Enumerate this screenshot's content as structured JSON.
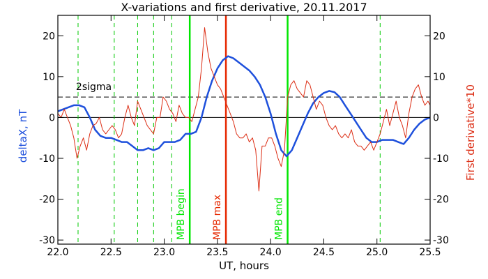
{
  "chart_data": {
    "type": "line",
    "title": "X-variations and first derivative, 20.11.2017",
    "xlabel": "UT, hours",
    "ylabel_left": "deltaX, nT",
    "ylabel_right": "First derivative*10",
    "xlim": [
      22.0,
      25.5
    ],
    "ylim": [
      -31,
      25
    ],
    "xticks": [
      "22.0",
      "22.5",
      "23.0",
      "23.5",
      "24.0",
      "24.5",
      "25.0",
      "25.5"
    ],
    "xtick_values": [
      22.0,
      22.5,
      23.0,
      23.5,
      24.0,
      24.5,
      25.0,
      25.5
    ],
    "yticks_left": [
      "20",
      "10",
      "0",
      "-10",
      "-20",
      "-30"
    ],
    "yticks_right": [
      "20",
      "10",
      "0",
      "-10",
      "-20",
      "-30"
    ],
    "ytick_values": [
      20,
      10,
      0,
      -10,
      -20,
      -30
    ],
    "colors": {
      "deltaX": "#1e50dc",
      "derivative": "#dc2d14",
      "mpb": "#00e600",
      "max": "#e62800",
      "dashed_green": "#00c800",
      "axis_left_label": "#1e50dc",
      "axis_right_label": "#dc2d14"
    },
    "series": [
      {
        "key": "deltaX",
        "color": "#1e50dc",
        "x": [
          22.0,
          22.05,
          22.1,
          22.15,
          22.2,
          22.25,
          22.3,
          22.35,
          22.4,
          22.45,
          22.5,
          22.55,
          22.6,
          22.65,
          22.7,
          22.75,
          22.8,
          22.85,
          22.9,
          22.95,
          23.0,
          23.05,
          23.1,
          23.15,
          23.2,
          23.25,
          23.3,
          23.35,
          23.4,
          23.45,
          23.5,
          23.55,
          23.6,
          23.65,
          23.7,
          23.75,
          23.8,
          23.85,
          23.9,
          23.95,
          24.0,
          24.05,
          24.1,
          24.15,
          24.2,
          24.25,
          24.3,
          24.35,
          24.4,
          24.45,
          24.5,
          24.55,
          24.6,
          24.65,
          24.7,
          24.75,
          24.8,
          24.85,
          24.9,
          24.95,
          25.0,
          25.05,
          25.1,
          25.15,
          25.2,
          25.25,
          25.3,
          25.35,
          25.4,
          25.45,
          25.5
        ],
        "values": [
          1.5,
          2,
          2.5,
          3,
          3,
          2.5,
          0,
          -3,
          -4.5,
          -5,
          -5,
          -5.5,
          -6,
          -6,
          -7,
          -8,
          -8,
          -7.5,
          -8,
          -7.5,
          -6,
          -6,
          -6,
          -5.5,
          -4,
          -4,
          -3.5,
          0,
          5,
          9,
          12,
          14,
          15,
          14.5,
          13.5,
          12.5,
          11.5,
          10,
          8,
          5,
          1,
          -4,
          -8,
          -9.5,
          -8,
          -5,
          -2,
          1,
          3.5,
          5,
          6,
          6.5,
          6.2,
          5,
          3,
          1,
          -1,
          -3,
          -5,
          -6,
          -6,
          -5.5,
          -5.5,
          -5.5,
          -6,
          -6.5,
          -5,
          -3,
          -1.5,
          -0.5,
          0
        ]
      },
      {
        "key": "derivative",
        "color": "#dc2d14",
        "x": [
          22.0,
          22.03,
          22.06,
          22.09,
          22.12,
          22.15,
          22.18,
          22.21,
          22.24,
          22.27,
          22.3,
          22.33,
          22.36,
          22.39,
          22.42,
          22.45,
          22.48,
          22.51,
          22.54,
          22.57,
          22.6,
          22.63,
          22.66,
          22.69,
          22.72,
          22.75,
          22.78,
          22.81,
          22.84,
          22.87,
          22.9,
          22.93,
          22.96,
          22.99,
          23.02,
          23.05,
          23.08,
          23.11,
          23.14,
          23.17,
          23.2,
          23.23,
          23.26,
          23.29,
          23.32,
          23.35,
          23.38,
          23.41,
          23.44,
          23.47,
          23.5,
          23.53,
          23.56,
          23.59,
          23.62,
          23.65,
          23.68,
          23.71,
          23.74,
          23.77,
          23.8,
          23.83,
          23.86,
          23.89,
          23.92,
          23.95,
          23.98,
          24.01,
          24.04,
          24.07,
          24.1,
          24.13,
          24.16,
          24.19,
          24.22,
          24.25,
          24.28,
          24.31,
          24.34,
          24.37,
          24.4,
          24.43,
          24.46,
          24.49,
          24.52,
          24.55,
          24.58,
          24.61,
          24.64,
          24.67,
          24.7,
          24.73,
          24.76,
          24.79,
          24.82,
          24.85,
          24.88,
          24.91,
          24.94,
          24.97,
          25.0,
          25.03,
          25.06,
          25.09,
          25.12,
          25.15,
          25.18,
          25.21,
          25.24,
          25.27,
          25.3,
          25.33,
          25.36,
          25.39,
          25.42,
          25.45,
          25.48,
          25.5
        ],
        "values": [
          1,
          0,
          2,
          0,
          -2,
          -5,
          -10,
          -7,
          -5,
          -8,
          -4,
          -2,
          -1.5,
          0,
          -3,
          -4,
          -3,
          -2,
          -3,
          -5,
          -4,
          0,
          3,
          0,
          -2,
          4,
          2,
          0,
          -2,
          -3,
          -4,
          0,
          0,
          5,
          4,
          2,
          1,
          -1,
          3,
          1,
          0,
          0,
          -1,
          2,
          5,
          12,
          22,
          16,
          12,
          10,
          8,
          7,
          5,
          3,
          1,
          -1,
          -4,
          -5,
          -5,
          -4,
          -6,
          -5,
          -8,
          -18,
          -7,
          -7,
          -5,
          -5,
          -7,
          -10,
          -12,
          -8,
          5,
          8,
          9,
          7,
          6,
          5,
          9,
          8,
          5,
          2,
          4,
          3,
          0,
          -2,
          -3,
          -2,
          -4,
          -5,
          -4,
          -5,
          -3,
          -6,
          -7,
          -7,
          -8,
          -7,
          -6,
          -8,
          -6,
          -4,
          -1,
          2,
          -2,
          1,
          4,
          0,
          -2,
          -5,
          1,
          5,
          7,
          8,
          5,
          3,
          4,
          3
        ]
      }
    ],
    "annotations": [
      {
        "label": "2sigma",
        "y": 5,
        "style": "dashed",
        "color": "#000000"
      },
      {
        "label": "",
        "y": 0,
        "style": "solid",
        "color": "#000000"
      }
    ],
    "vertical_markers": [
      {
        "x": 22.19,
        "style": "dashed",
        "color": "#00c800",
        "label": ""
      },
      {
        "x": 22.53,
        "style": "dashed",
        "color": "#00c800",
        "label": ""
      },
      {
        "x": 22.75,
        "style": "dashed",
        "color": "#00c800",
        "label": ""
      },
      {
        "x": 22.9,
        "style": "dashed",
        "color": "#00c800",
        "label": ""
      },
      {
        "x": 23.07,
        "style": "dashed",
        "color": "#00c800",
        "label": ""
      },
      {
        "x": 23.24,
        "style": "solid",
        "color": "#00e600",
        "label": "MPB begin"
      },
      {
        "x": 23.58,
        "style": "solid",
        "color": "#e62800",
        "label": "MPB max"
      },
      {
        "x": 24.16,
        "style": "solid",
        "color": "#00e600",
        "label": "MPB end"
      },
      {
        "x": 25.03,
        "style": "dashed",
        "color": "#00c800",
        "label": ""
      }
    ]
  }
}
